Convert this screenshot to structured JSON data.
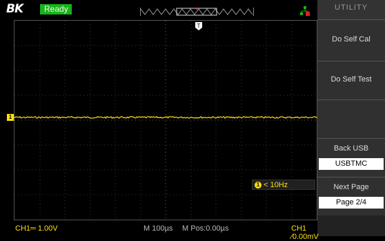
{
  "header": {
    "logo": "BK",
    "status": "Ready"
  },
  "trigger": {
    "marker": "T"
  },
  "channel": {
    "marker": "1"
  },
  "measure": {
    "badge": "1",
    "freq": "< 10Hz"
  },
  "menu": {
    "title": "UTILITY",
    "items": [
      {
        "label": "Do Self Cal"
      },
      {
        "label": "Do Self Test"
      },
      {
        "label": "Back USB",
        "value": "USBTMC"
      },
      {
        "label": "Next Page",
        "value": "Page 2/4"
      }
    ]
  },
  "status_bar": {
    "ch1_scale": "CH1═ 1.00V",
    "timebase": "M 100µs",
    "mpos": "M Pos:0.00µs",
    "trigger": "CH1 ⁄0.00mV"
  },
  "colors": {
    "trace": "#ffe10a",
    "status": "#19b319",
    "grid": "#3a3a3a"
  }
}
